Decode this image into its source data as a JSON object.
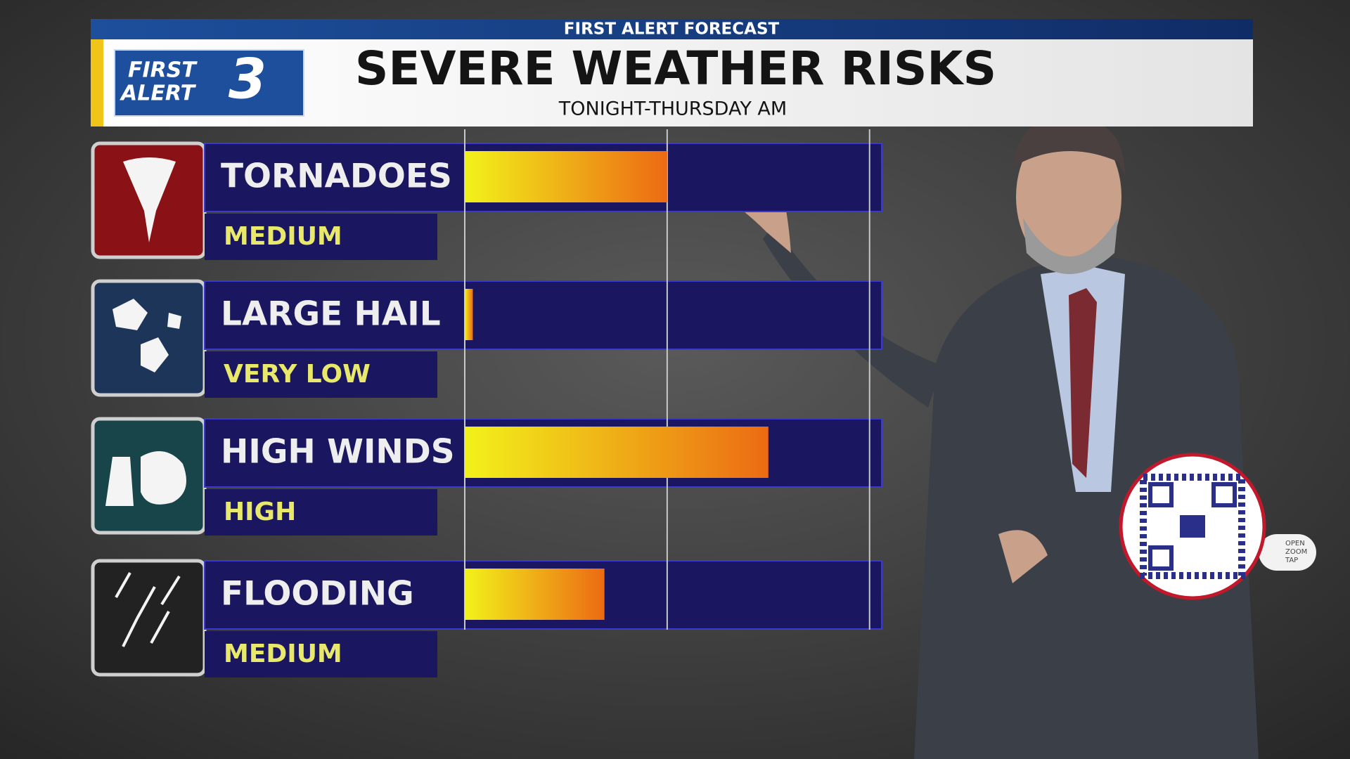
{
  "chart_data": {
    "type": "bar",
    "header": "FIRST ALERT FORECAST",
    "title": "SEVERE WEATHER RISKS",
    "subtitle": "TONIGHT-THURSDAY AM",
    "logo": [
      "FIRST",
      "ALERT",
      "3"
    ],
    "qr_prompt": [
      "OPEN",
      "ZOOM",
      "TAP"
    ],
    "categories": [
      "TORNADOES",
      "LARGE HAIL",
      "HIGH WINDS",
      "FLOODING"
    ],
    "levels": [
      "MEDIUM",
      "VERY LOW",
      "HIGH",
      "MEDIUM"
    ],
    "values": [
      1,
      0.04,
      1.5,
      0.69
    ],
    "xlim": [
      0,
      2.06
    ],
    "xticks": [
      0,
      1,
      2
    ],
    "grid": true,
    "color_from": "#f2f21a",
    "color_to": "#ec6a14"
  }
}
